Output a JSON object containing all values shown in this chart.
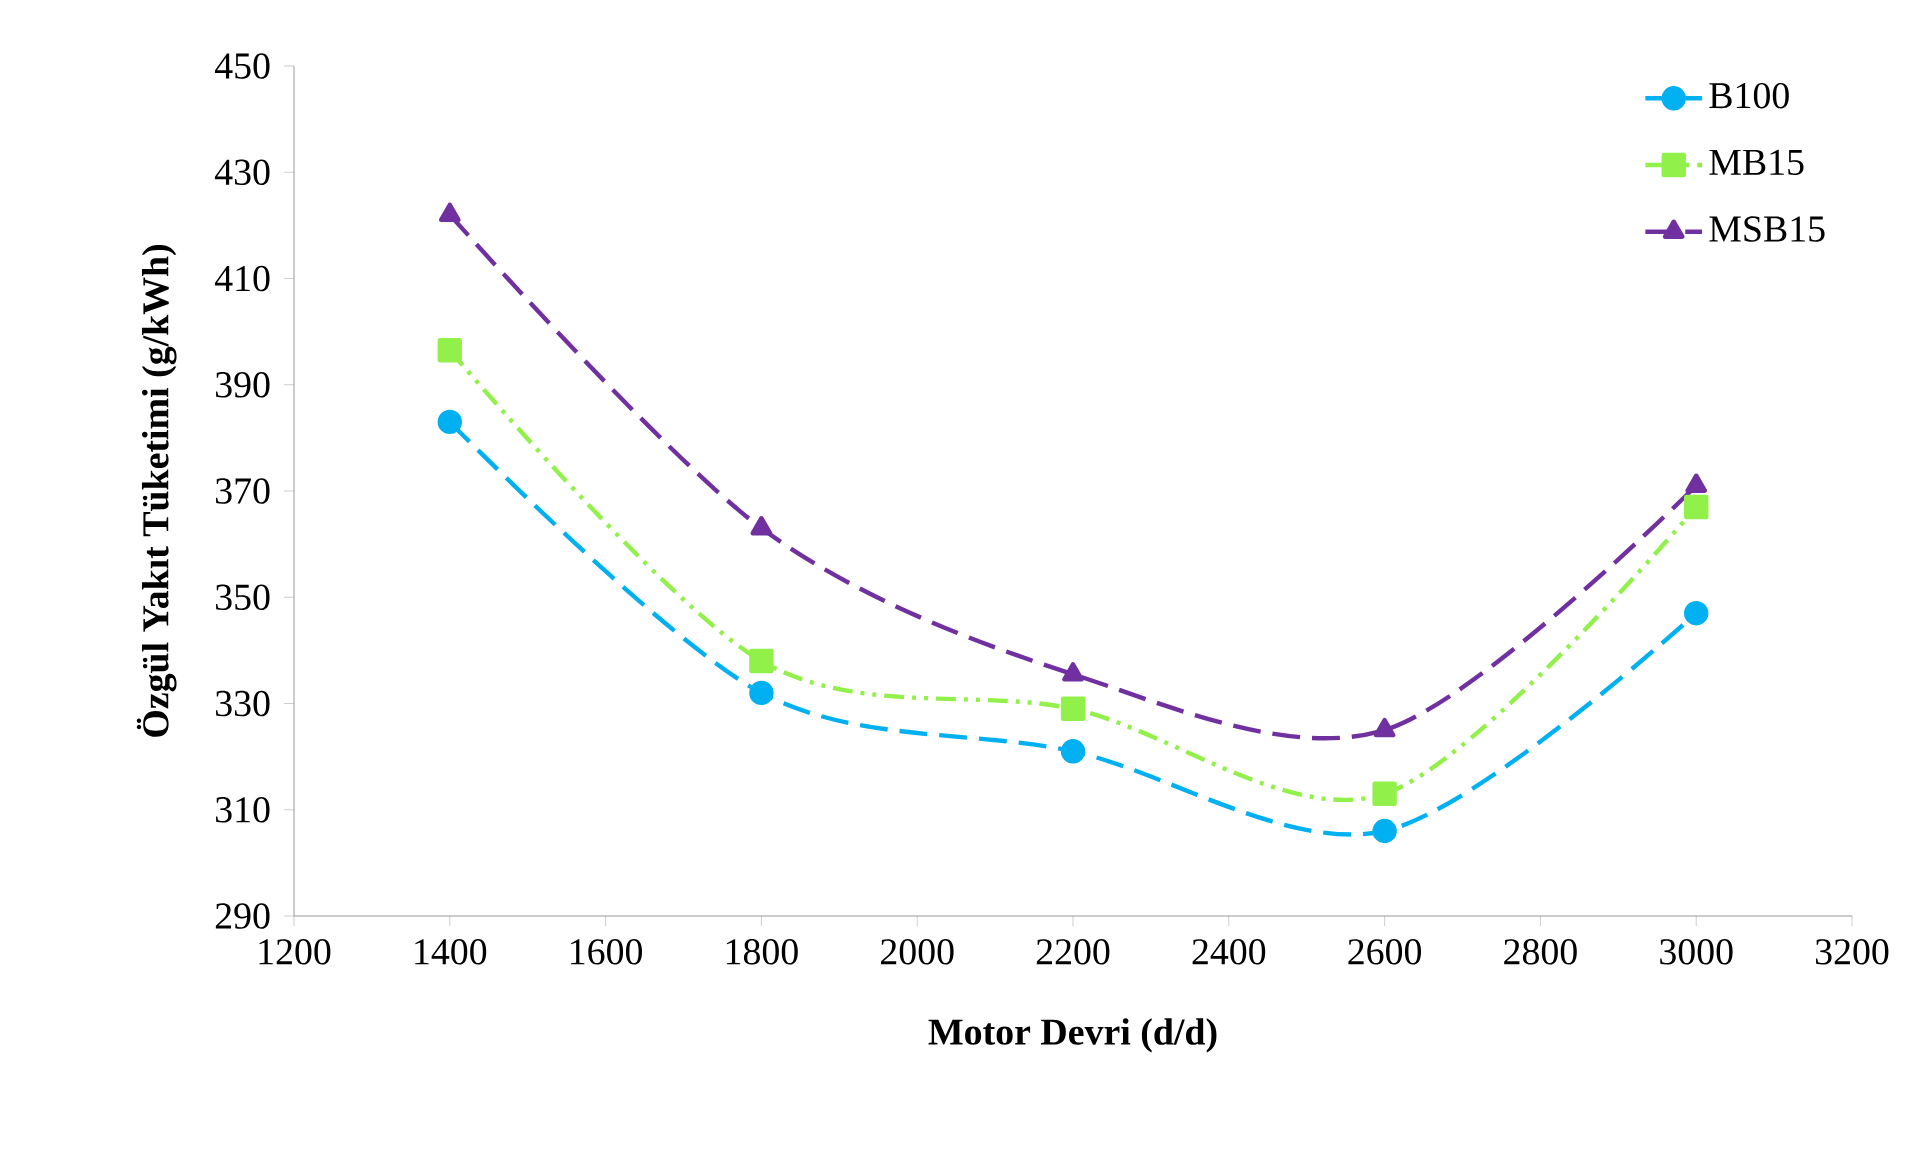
{
  "chart_data": {
    "type": "line",
    "xlabel": "Motor Devri (d/d)",
    "ylabel": "Özgül Yakıt Tüketimi (g/kWh)",
    "x": [
      1400,
      1800,
      2200,
      2600,
      3000
    ],
    "series": [
      {
        "name": "B100",
        "color": "#00b0f0",
        "marker": "circle",
        "line_style": "dashed",
        "values": [
          383,
          332,
          321,
          306,
          347
        ]
      },
      {
        "name": "MB15",
        "color": "#92f04a",
        "marker": "square",
        "line_style": "dashdotted",
        "values": [
          396.5,
          338,
          329,
          313,
          367
        ]
      },
      {
        "name": "MSB15",
        "color": "#7030a0",
        "marker": "triangle",
        "line_style": "dashed",
        "values": [
          422,
          363,
          335.5,
          325,
          371
        ]
      }
    ],
    "xlim": [
      1200,
      3200
    ],
    "xticks": [
      1200,
      1400,
      1600,
      1800,
      2000,
      2200,
      2400,
      2600,
      2800,
      3000,
      3200
    ],
    "ylim": [
      290,
      450
    ],
    "yticks": [
      290,
      310,
      330,
      350,
      370,
      390,
      410,
      430,
      450
    ],
    "grid": false,
    "legend": "top right"
  }
}
